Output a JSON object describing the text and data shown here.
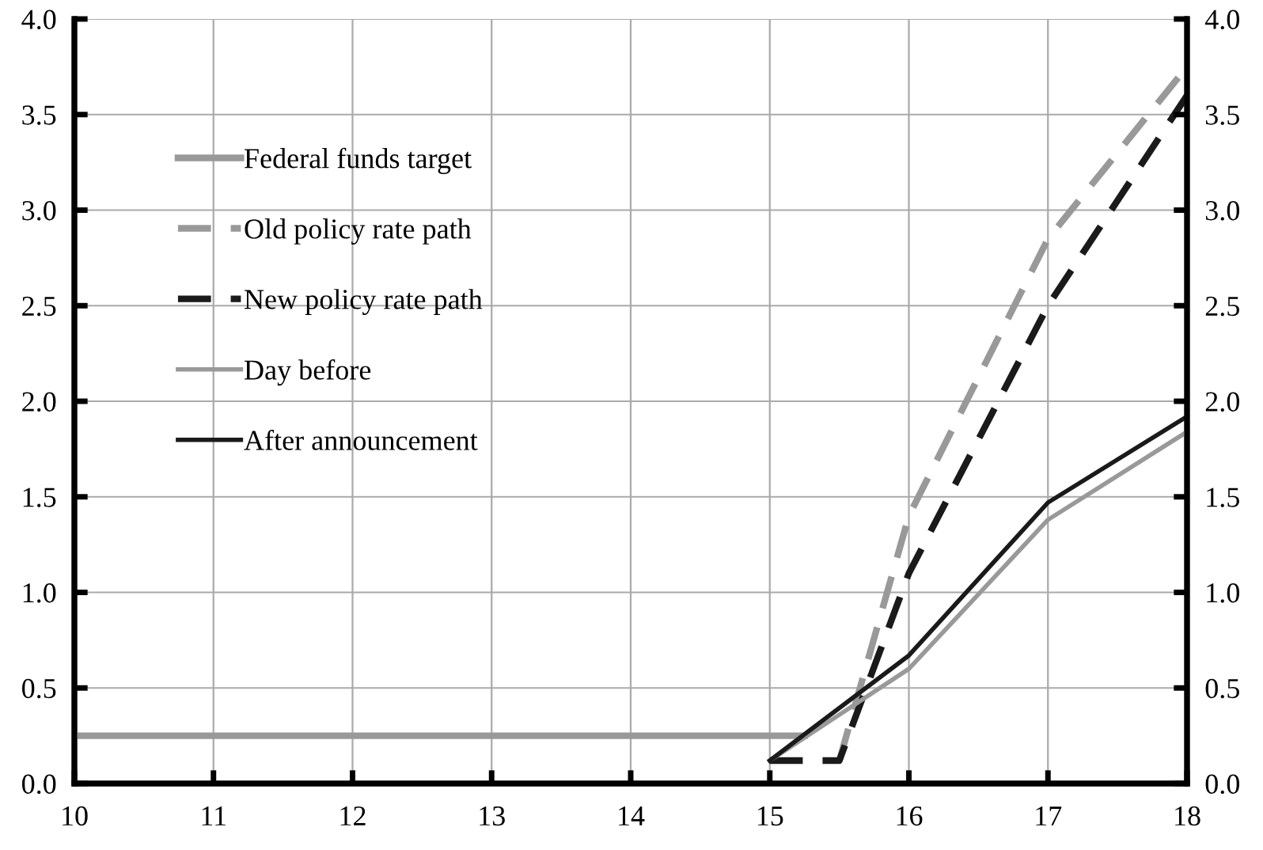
{
  "chart_data": {
    "type": "line",
    "xlim": [
      10,
      18
    ],
    "xticks": [
      10,
      11,
      12,
      13,
      14,
      15,
      16,
      17,
      18
    ],
    "ylim": [
      0,
      4
    ],
    "yticks": [
      {
        "value": 0,
        "label": "0.0"
      },
      0.5,
      {
        "value": 1,
        "label": "1.0"
      },
      1.5,
      {
        "value": 2,
        "label": "2.0"
      },
      2.5,
      {
        "value": 3,
        "label": "3.0"
      },
      3.5,
      {
        "value": 4,
        "label": "4.0"
      }
    ],
    "y2lim": [
      0,
      4
    ],
    "y2ticks": [
      {
        "value": 0,
        "label": "0.0"
      },
      0.5,
      {
        "value": 1,
        "label": "1.0"
      },
      1.5,
      {
        "value": 2,
        "label": "2.0"
      },
      2.5,
      {
        "value": 3,
        "label": "3.0"
      },
      3.5,
      {
        "value": 4,
        "label": "4.0"
      }
    ],
    "grid": true,
    "legend": "left",
    "marker": "none",
    "series": [
      {
        "name": "Federal funds target",
        "color": "#999999",
        "x": [
          10,
          15.25
        ],
        "values": [
          0.25,
          0.25
        ],
        "line_style": "solid"
      },
      {
        "name": "Old policy rate path",
        "color": "#999999",
        "x": [
          15.5,
          16,
          17,
          18
        ],
        "values": [
          0.12,
          1.4,
          2.85,
          3.75
        ],
        "line_style": "dashed"
      },
      {
        "name": "New policy rate path",
        "color": "#1a1a1a",
        "x": [
          15,
          15.5,
          16,
          17,
          18
        ],
        "values": [
          0.12,
          0.12,
          1.1,
          2.5,
          3.6
        ],
        "line_style": "dashed"
      },
      {
        "name": "Day before",
        "color": "#999999",
        "x": [
          15,
          16,
          17,
          18
        ],
        "values": [
          0.12,
          0.6,
          1.38,
          1.84
        ],
        "line_style": "solid"
      },
      {
        "name": "After announcement",
        "color": "#1a1a1a",
        "x": [
          15,
          16,
          17,
          18
        ],
        "values": [
          0.12,
          0.67,
          1.47,
          1.92
        ],
        "line_style": "solid"
      }
    ]
  }
}
